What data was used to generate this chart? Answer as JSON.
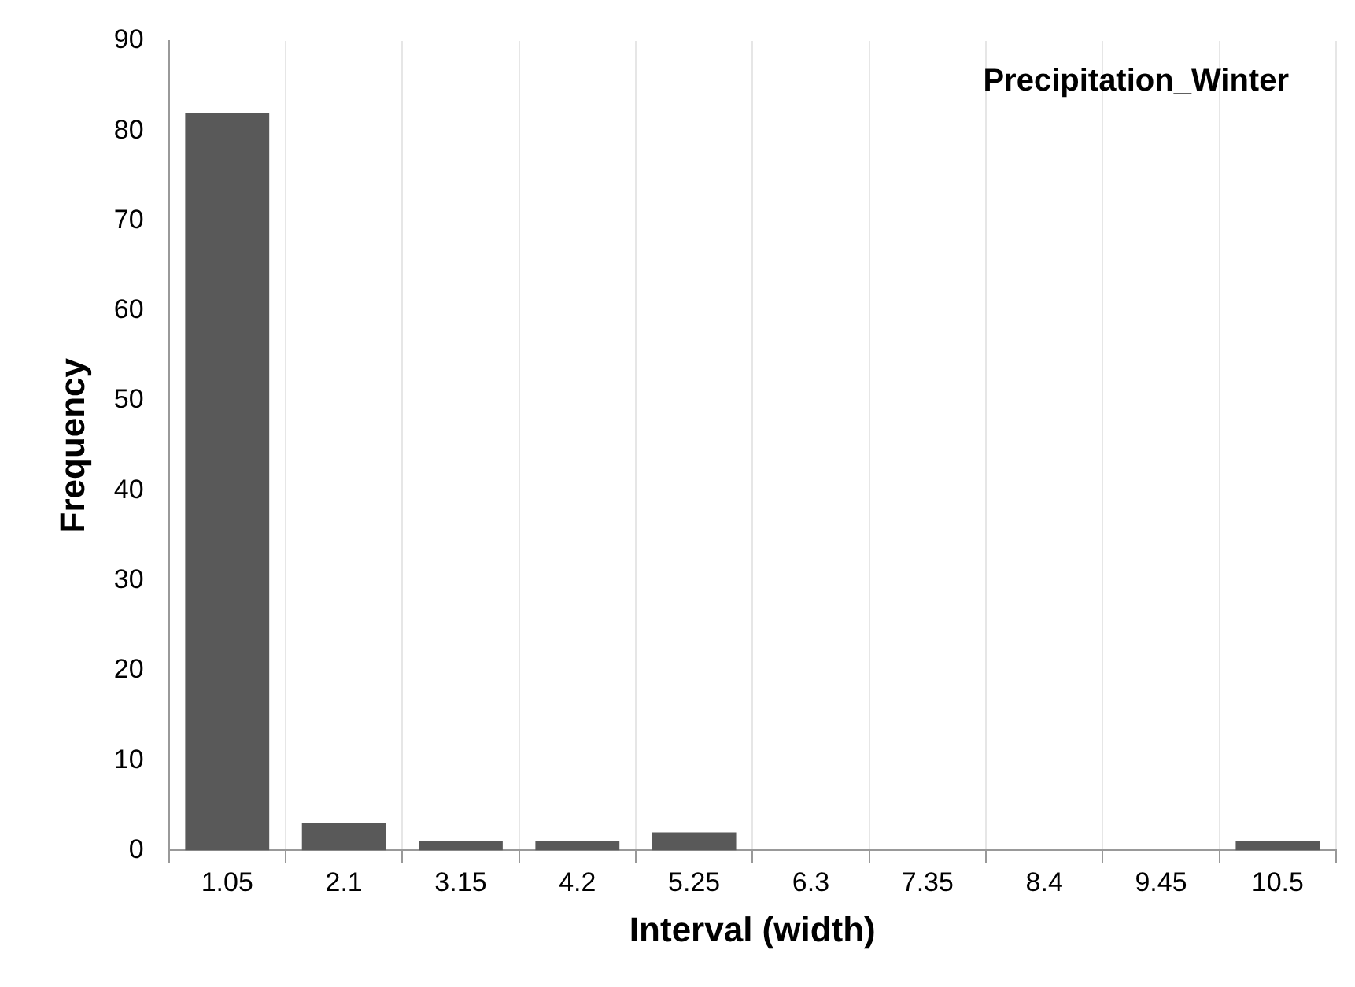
{
  "chart_data": {
    "type": "bar",
    "title": "Precipitation_Winter",
    "xlabel": "Interval (width)",
    "ylabel": "Frequency",
    "categories": [
      "1.05",
      "2.1",
      "3.15",
      "4.2",
      "5.25",
      "6.3",
      "7.35",
      "8.4",
      "9.45",
      "10.5"
    ],
    "values": [
      82,
      3,
      1,
      1,
      2,
      0,
      0,
      0,
      0,
      1
    ],
    "color": "#595959",
    "ylim": [
      0,
      90
    ],
    "yticks": [
      0,
      10,
      20,
      30,
      40,
      50,
      60,
      70,
      80,
      90
    ],
    "grid": "x",
    "legend": false
  }
}
